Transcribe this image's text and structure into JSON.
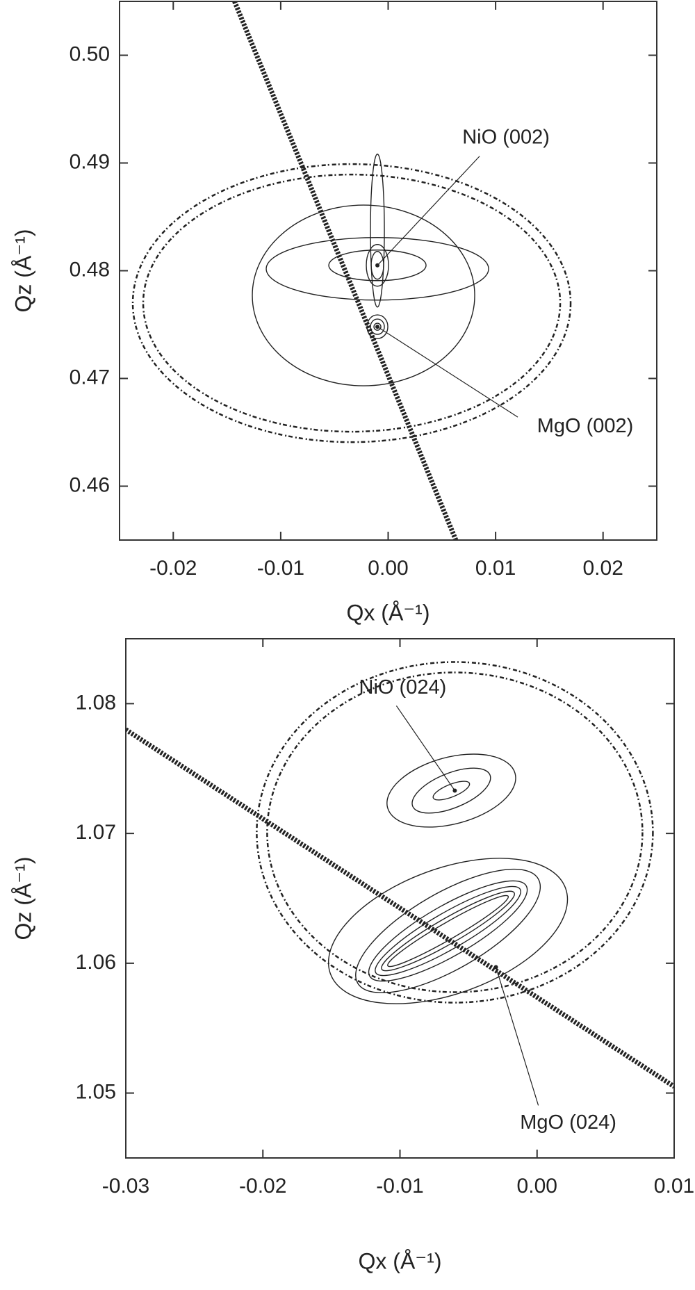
{
  "chart_data": [
    {
      "type": "contour",
      "xlabel": "Qx (Å⁻¹)",
      "ylabel": "Qz (Å⁻¹)",
      "xlim": [
        -0.025,
        0.025
      ],
      "ylim": [
        0.455,
        0.505
      ],
      "xticks": [
        -0.02,
        -0.01,
        {
          "value": 0,
          "label": "0.00"
        },
        0.01,
        0.02
      ],
      "yticks": [
        0.46,
        0.47,
        0.48,
        0.49,
        {
          "value": 0.5,
          "label": "0.50"
        }
      ],
      "streak": {
        "x": [
          -0.0143,
          0.0063
        ],
        "y": [
          0.505,
          0.455
        ]
      },
      "peaks": [
        {
          "label": "NiO (002)",
          "x": -0.001,
          "y": 0.4805
        },
        {
          "label": "MgO (002)",
          "x": -0.001,
          "y": 0.4748
        }
      ],
      "color": "#222"
    },
    {
      "type": "contour",
      "xlabel": "Qx (Å⁻¹)",
      "ylabel": "Qz (Å⁻¹)",
      "xlim": [
        -0.03,
        0.01
      ],
      "ylim": [
        1.045,
        1.085
      ],
      "xticks": [
        -0.03,
        -0.02,
        -0.01,
        {
          "value": 0,
          "label": "0.00"
        },
        0.01
      ],
      "yticks": [
        1.05,
        1.06,
        1.07,
        1.08
      ],
      "streak": {
        "x": [
          -0.03,
          0.01
        ],
        "y": [
          1.078,
          1.0505
        ]
      },
      "peaks": [
        {
          "label": "NiO (024)",
          "x": -0.006,
          "y": 1.0733
        },
        {
          "label": "MgO (024)",
          "x": -0.003,
          "y": 1.0597
        }
      ],
      "color": "#222"
    }
  ]
}
